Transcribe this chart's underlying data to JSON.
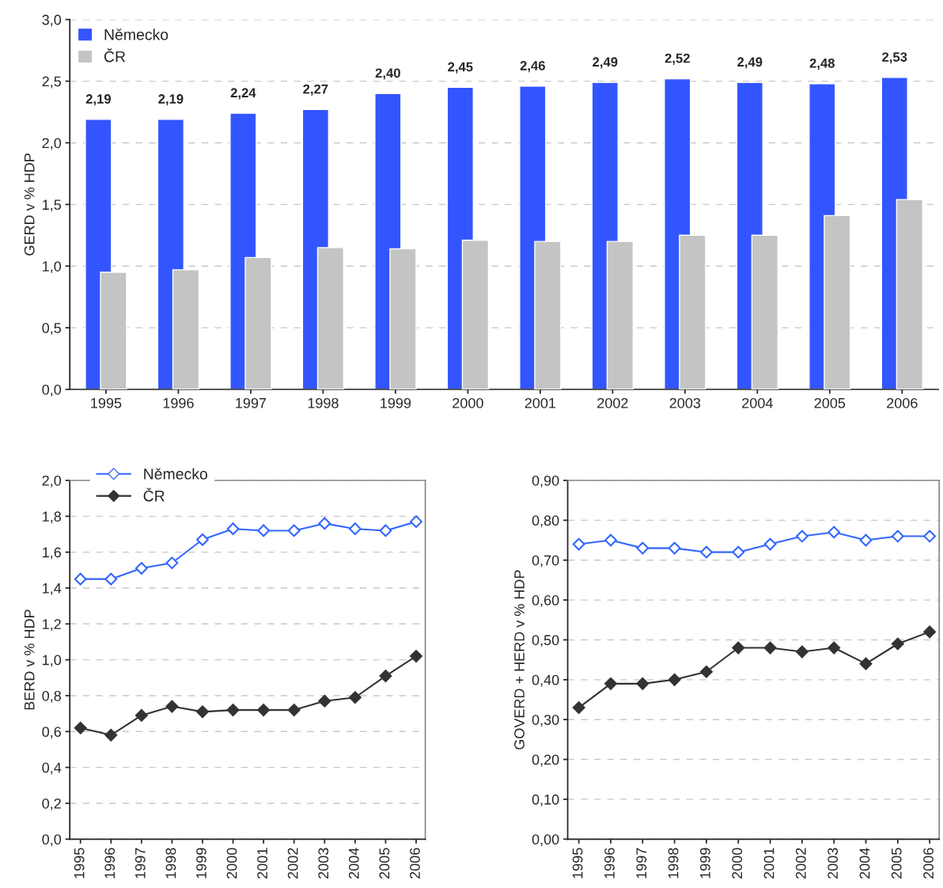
{
  "chart_data": [
    {
      "type": "bar",
      "ylabel": "GERD v % HDP",
      "categories": [
        "1995",
        "1996",
        "1997",
        "1998",
        "1999",
        "2000",
        "2001",
        "2002",
        "2003",
        "2004",
        "2005",
        "2006"
      ],
      "series": [
        {
          "name": "Německo",
          "color": "#3355ff",
          "values": [
            2.19,
            2.19,
            2.24,
            2.27,
            2.4,
            2.45,
            2.46,
            2.49,
            2.52,
            2.49,
            2.48,
            2.53
          ],
          "value_labels": [
            "2,19",
            "2,19",
            "2,24",
            "2,27",
            "2,40",
            "2,45",
            "2,46",
            "2,49",
            "2,52",
            "2,49",
            "2,48",
            "2,53"
          ]
        },
        {
          "name": "ČR",
          "color": "#c4c4c4",
          "values": [
            0.95,
            0.97,
            1.07,
            1.15,
            1.14,
            1.21,
            1.2,
            1.2,
            1.25,
            1.25,
            1.41,
            1.54
          ]
        }
      ],
      "ylim": [
        0,
        3.0
      ],
      "yticks": [
        {
          "value": 0,
          "label": "0,0"
        },
        {
          "value": 0.5,
          "label": "0,5"
        },
        {
          "value": 1.0,
          "label": "1,0"
        },
        {
          "value": 1.5,
          "label": "1,5"
        },
        {
          "value": 2.0,
          "label": "2,0"
        },
        {
          "value": 2.5,
          "label": "2,5"
        },
        {
          "value": 3.0,
          "label": "3,0"
        }
      ],
      "grid": "y",
      "legend": "top left"
    },
    {
      "type": "line",
      "ylabel": "BERD v % HDP",
      "categories": [
        "1995",
        "1996",
        "1997",
        "1998",
        "1999",
        "2000",
        "2001",
        "2002",
        "2003",
        "2004",
        "2005",
        "2006"
      ],
      "series": [
        {
          "name": "Německo",
          "color": "#3366ff",
          "marker": "diamond",
          "values": [
            1.45,
            1.45,
            1.51,
            1.54,
            1.67,
            1.73,
            1.72,
            1.72,
            1.76,
            1.73,
            1.72,
            1.77
          ]
        },
        {
          "name": "ČR",
          "color": "#333333",
          "marker": "diamond",
          "values": [
            0.62,
            0.58,
            0.69,
            0.74,
            0.71,
            0.72,
            0.72,
            0.72,
            0.77,
            0.79,
            0.91,
            1.02
          ]
        }
      ],
      "ylim": [
        0,
        2.0
      ],
      "yticks": [
        {
          "value": 0,
          "label": "0,0"
        },
        {
          "value": 0.2,
          "label": "0,2"
        },
        {
          "value": 0.4,
          "label": "0,4"
        },
        {
          "value": 0.6,
          "label": "0,6"
        },
        {
          "value": 0.8,
          "label": "0,8"
        },
        {
          "value": 1.0,
          "label": "1,0"
        },
        {
          "value": 1.2,
          "label": "1,2"
        },
        {
          "value": 1.4,
          "label": "1,4"
        },
        {
          "value": 1.6,
          "label": "1,6"
        },
        {
          "value": 1.8,
          "label": "1,8"
        },
        {
          "value": 2.0,
          "label": "2,0"
        }
      ],
      "grid": "y",
      "legend": "top left"
    },
    {
      "type": "line",
      "ylabel": "GOVERD + HERD v % HDP",
      "categories": [
        "1995",
        "1996",
        "1997",
        "1998",
        "1999",
        "2000",
        "2001",
        "2002",
        "2003",
        "2004",
        "2005",
        "2006"
      ],
      "series": [
        {
          "color": "#3366ff",
          "marker": "diamond",
          "values": [
            0.74,
            0.75,
            0.73,
            0.73,
            0.72,
            0.72,
            0.74,
            0.76,
            0.77,
            0.75,
            0.76,
            0.76
          ]
        },
        {
          "color": "#333333",
          "marker": "diamond",
          "values": [
            0.33,
            0.39,
            0.39,
            0.4,
            0.42,
            0.48,
            0.48,
            0.47,
            0.48,
            0.44,
            0.49,
            0.52
          ]
        }
      ],
      "ylim": [
        0,
        0.9
      ],
      "yticks": [
        {
          "value": 0,
          "label": "0,00"
        },
        {
          "value": 0.1,
          "label": "0,10"
        },
        {
          "value": 0.2,
          "label": "0,20"
        },
        {
          "value": 0.3,
          "label": "0,30"
        },
        {
          "value": 0.4,
          "label": "0,40"
        },
        {
          "value": 0.5,
          "label": "0,50"
        },
        {
          "value": 0.6,
          "label": "0,60"
        },
        {
          "value": 0.7,
          "label": "0,70"
        },
        {
          "value": 0.8,
          "label": "0,80"
        },
        {
          "value": 0.9,
          "label": "0,90"
        }
      ],
      "grid": "y"
    }
  ]
}
